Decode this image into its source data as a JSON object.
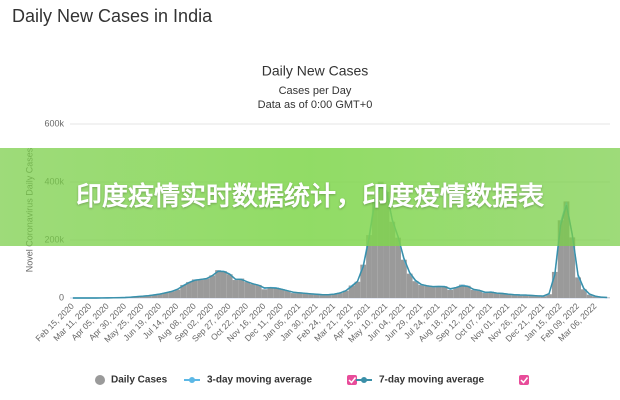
{
  "header": {
    "title": "Daily New Cases in India"
  },
  "banner": "印度疫情实时数据统计，印度疫情数据表",
  "chart_data": {
    "type": "bar",
    "title": "Daily New Cases",
    "subtitle": "Cases per Day",
    "note": "Data as of 0:00 GMT+0",
    "y_label": "Novel Coronavirus Daily Cases",
    "ylim": [
      0,
      600000
    ],
    "yticks": [
      0,
      {
        "value": 200000,
        "label": "200k"
      },
      {
        "value": 400000,
        "label": "400k"
      },
      {
        "value": 600000,
        "label": "600k"
      }
    ],
    "grid": true,
    "categories": [
      "Feb 15, 2020",
      null,
      null,
      "Mar 11, 2020",
      null,
      null,
      "Apr 05, 2020",
      null,
      null,
      "Apr 30, 2020",
      null,
      null,
      "May 25, 2020",
      null,
      null,
      "Jun 19, 2020",
      null,
      null,
      "Jul 14, 2020",
      null,
      null,
      "Aug 08, 2020",
      null,
      null,
      "Sep 02, 2020",
      null,
      null,
      "Sep 27, 2020",
      null,
      null,
      "Oct 22, 2020",
      null,
      null,
      "Nov 16, 2020",
      null,
      null,
      "Dec 11, 2020",
      null,
      null,
      "Jan 05, 2021",
      null,
      null,
      "Jan 30, 2021",
      null,
      null,
      "Feb 24, 2021",
      null,
      null,
      "Mar 21, 2021",
      null,
      null,
      "Apr 15, 2021",
      null,
      null,
      "May 10, 2021",
      null,
      null,
      "Jun 04, 2021",
      null,
      null,
      "Jun 29, 2021",
      null,
      null,
      "Jul 24, 2021",
      null,
      null,
      "Aug 18, 2021",
      null,
      null,
      "Sep 12, 2021",
      null,
      null,
      "Oct 07, 2021",
      null,
      null,
      "Nov 01, 2021",
      null,
      null,
      "Nov 26, 2021",
      null,
      null,
      "Dec 21, 2021",
      null,
      null,
      "Jan 15, 2022",
      null,
      null,
      "Feb 09, 2022",
      null,
      null,
      "Mar 06, 2022",
      null,
      null
    ],
    "series": [
      {
        "name": "Daily Cases",
        "type": "bar",
        "color": "#9a9a9a",
        "values": [
          0,
          0,
          0,
          10,
          30,
          150,
          500,
          900,
          1400,
          1800,
          3300,
          5000,
          6500,
          8200,
          11000,
          14000,
          19000,
          23000,
          29000,
          45000,
          55000,
          64000,
          63000,
          67000,
          78000,
          96000,
          93000,
          82000,
          62000,
          67000,
          55000,
          48000,
          45000,
          30000,
          37000,
          36000,
          30000,
          25000,
          17000,
          18000,
          16000,
          14000,
          13000,
          11000,
          11500,
          13700,
          17000,
          25000,
          43000,
          56000,
          115000,
          217000,
          346000,
          401000,
          366000,
          263000,
          208000,
          132000,
          84000,
          58000,
          45000,
          43000,
          38000,
          39000,
          41000,
          28000,
          36000,
          46000,
          42000,
          28000,
          26000,
          18000,
          22000,
          16000,
          16000,
          12500,
          11000,
          10000,
          10500,
          8500,
          7500,
          6300,
          13000,
          90000,
          268000,
          333000,
          209000,
          71000,
          30000,
          11500,
          5500,
          2500,
          1500
        ]
      },
      {
        "name": "3-day moving average",
        "type": "line",
        "color": "#5cb8e6",
        "values": [
          0,
          0,
          0,
          8,
          25,
          130,
          450,
          850,
          1300,
          1750,
          3100,
          4800,
          6400,
          8000,
          10800,
          13800,
          18500,
          22800,
          30000,
          43000,
          54000,
          62000,
          64000,
          66000,
          77000,
          93000,
          92000,
          83000,
          64000,
          65000,
          56000,
          49000,
          44000,
          33000,
          36000,
          35000,
          30000,
          25000,
          19000,
          18000,
          16000,
          14000,
          12800,
          11200,
          11400,
          13500,
          17500,
          25500,
          42000,
          57000,
          112000,
          212000,
          340000,
          392000,
          370000,
          268000,
          210000,
          134000,
          86000,
          59000,
          46000,
          42000,
          39000,
          40000,
          40000,
          30000,
          36000,
          44000,
          41000,
          29000,
          26000,
          19000,
          21000,
          16500,
          15500,
          13000,
          11200,
          10300,
          10000,
          8600,
          7400,
          6500,
          14000,
          85000,
          260000,
          330000,
          215000,
          75000,
          31000,
          12500,
          5800,
          2700,
          1600
        ]
      },
      {
        "name": "7-day moving average",
        "type": "line",
        "color": "#3a8fa8",
        "values": [
          0,
          0,
          0,
          6,
          20,
          110,
          400,
          800,
          1250,
          1700,
          2900,
          4600,
          6200,
          7900,
          10500,
          13500,
          18000,
          22500,
          30000,
          42000,
          53000,
          61000,
          64000,
          67000,
          77000,
          92000,
          91000,
          82000,
          65000,
          64000,
          56000,
          49000,
          44000,
          35000,
          35000,
          34000,
          30000,
          25000,
          20000,
          18000,
          16000,
          14500,
          12900,
          11300,
          11400,
          13200,
          17300,
          25000,
          40000,
          57000,
          108000,
          205000,
          330000,
          385000,
          368000,
          270000,
          212000,
          138000,
          88000,
          61000,
          47000,
          42000,
          39500,
          40000,
          39000,
          32000,
          36000,
          42000,
          40000,
          30000,
          26500,
          20000,
          20000,
          17000,
          15500,
          13000,
          11500,
          10500,
          10000,
          8800,
          7500,
          6700,
          15000,
          80000,
          250000,
          320000,
          220000,
          80000,
          33000,
          13500,
          6200,
          3000,
          1800
        ]
      }
    ]
  }
}
